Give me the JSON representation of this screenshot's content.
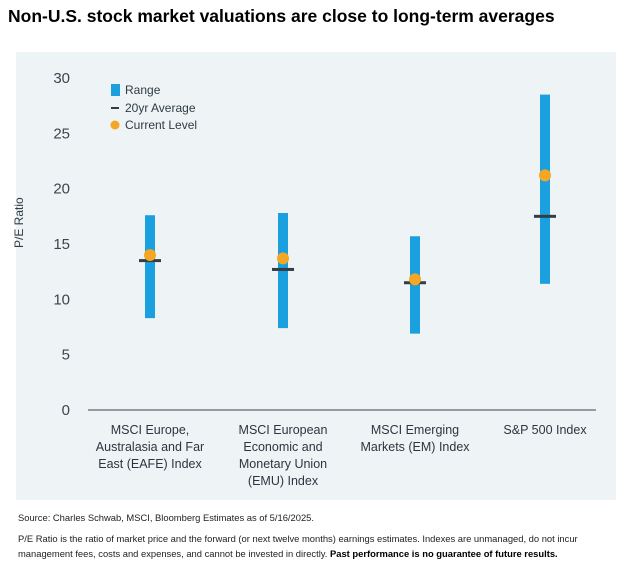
{
  "title": "Non-U.S. stock market valuations are close to long-term averages",
  "source": "Source: Charles Schwab, MSCI, Bloomberg Estimates as of 5/16/2025.",
  "note": "P/E Ratio is the ratio of market price and the forward (or next twelve months) earnings estimates. Indexes are unmanaged, do not incur management fees, costs and expenses, and cannot be invested in directly.",
  "note_bold": "Past performance is no guarantee of future results.",
  "colors": {
    "range": "#1a9fdf",
    "average": "#333d45",
    "current": "#f5a623",
    "panel": "#eef3f5"
  },
  "chart_data": {
    "type": "range",
    "title": "Non-U.S. stock market valuations are close to long-term averages",
    "xlabel": "",
    "ylabel": "P/E Ratio",
    "ylim": [
      0,
      30
    ],
    "yticks": [
      0,
      5,
      10,
      15,
      20,
      25,
      30
    ],
    "grid": false,
    "legend": {
      "placement": "top-left",
      "entries": [
        "Range",
        "20yr Average",
        "Current Level"
      ]
    },
    "categories": [
      [
        "MSCI Europe,",
        "Australasia and Far",
        "East (EAFE) Index"
      ],
      [
        "MSCI European",
        "Economic and",
        "Monetary Union",
        "(EMU) Index"
      ],
      [
        "MSCI Emerging",
        "Markets (EM) Index"
      ],
      [
        "S&P 500 Index"
      ]
    ],
    "series": [
      {
        "name": "Range",
        "low": [
          8.3,
          7.4,
          6.9,
          11.4
        ],
        "high": [
          17.6,
          17.8,
          15.7,
          28.5
        ]
      },
      {
        "name": "20yr Average",
        "values": [
          13.5,
          12.7,
          11.5,
          17.5
        ]
      },
      {
        "name": "Current Level",
        "values": [
          14.0,
          13.7,
          11.8,
          21.2
        ]
      }
    ]
  }
}
